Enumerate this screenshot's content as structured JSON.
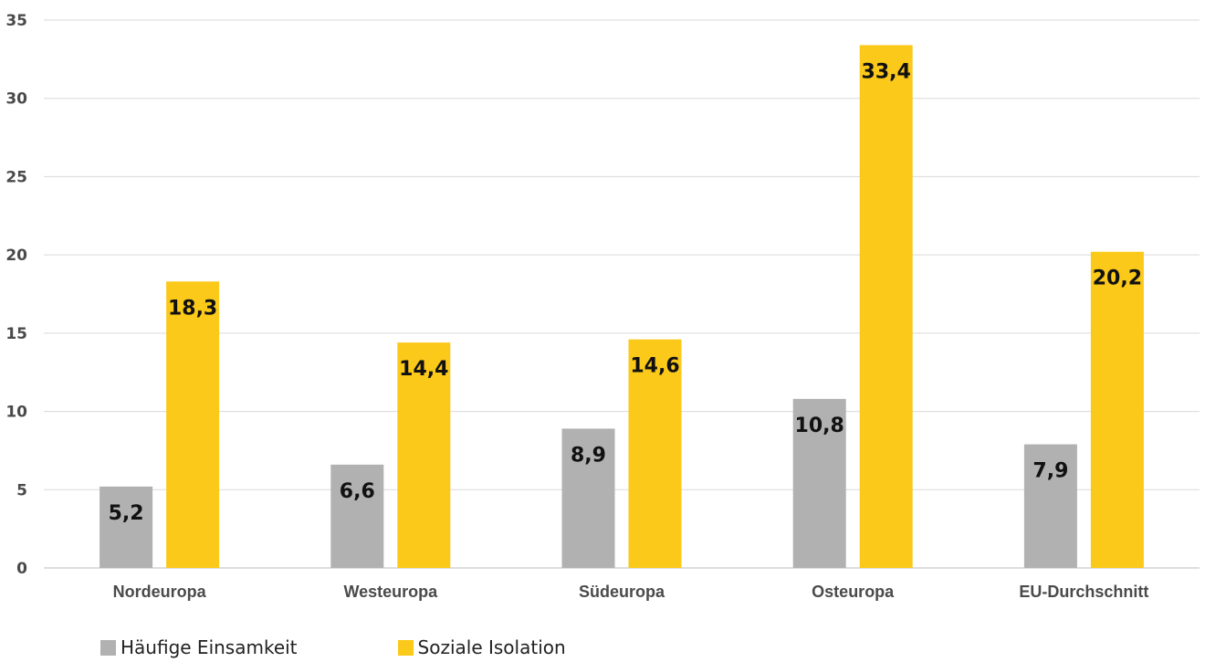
{
  "chart_data": {
    "type": "bar",
    "title": "",
    "xlabel": "",
    "ylabel": "",
    "categories": [
      "Nordeuropa",
      "Westeuropa",
      "Südeuropa",
      "Osteuropa",
      "EU-Durchschnitt"
    ],
    "series": [
      {
        "name": "Häufige Einsamkeit",
        "color": "#b1b1b1",
        "values": [
          5.2,
          6.6,
          8.9,
          10.8,
          7.9
        ],
        "labels": [
          "5,2",
          "6,6",
          "8,9",
          "10,8",
          "7,9"
        ]
      },
      {
        "name": "Soziale Isolation",
        "color": "#fbc919",
        "values": [
          18.3,
          14.4,
          14.6,
          33.4,
          20.2
        ],
        "labels": [
          "18,3",
          "14,4",
          "14,6",
          "33,4",
          "20,2"
        ]
      }
    ],
    "ylim": [
      0,
      35
    ],
    "yticks": [
      0,
      5,
      10,
      15,
      20,
      25,
      30,
      35
    ],
    "ytick_labels": [
      "0",
      "5",
      "10",
      "15",
      "20",
      "25",
      "30",
      "35"
    ],
    "grid": true,
    "gridline_color": "#d9d9d9",
    "legend_position": "bottom-left"
  }
}
